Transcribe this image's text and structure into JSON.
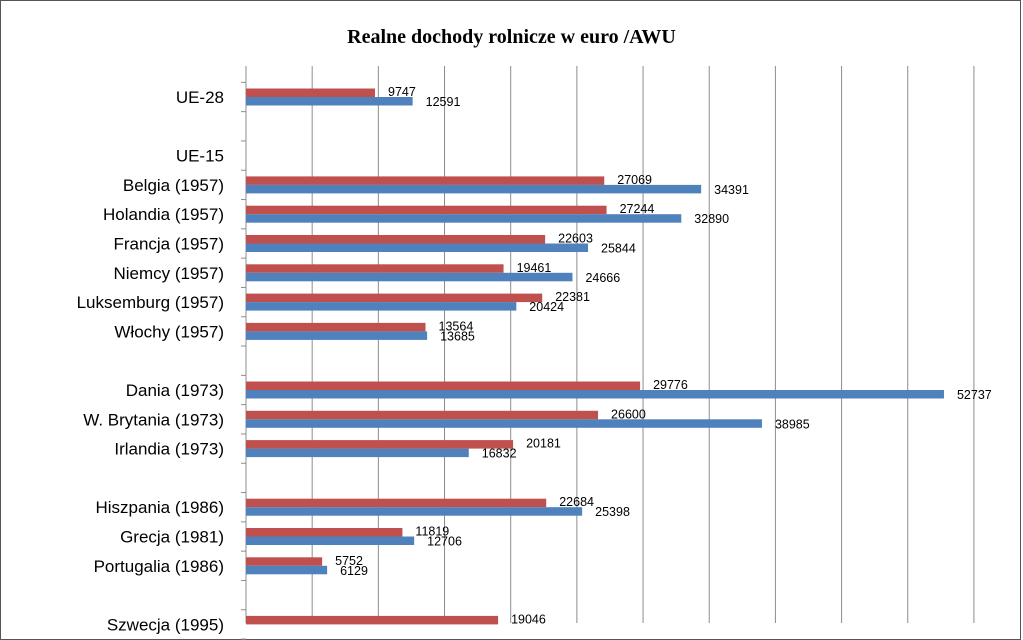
{
  "chart_data": {
    "type": "bar",
    "orientation": "horizontal",
    "title": "Realne dochody rolnicze w euro /AWU",
    "xlabel": "",
    "ylabel": "",
    "xlim": [
      0,
      55000
    ],
    "x_gridlines_every": 5000,
    "grid": true,
    "legend": "none visible",
    "colors": {
      "series_a": "#C0504D",
      "series_b": "#4F81BD"
    },
    "categories": [
      "UE-28",
      "",
      "UE-15",
      "Belgia (1957)",
      "Holandia (1957)",
      "Francja (1957)",
      "Niemcy (1957)",
      "Luksemburg  (1957)",
      "Włochy (1957)",
      "",
      "Dania (1973)",
      "W. Brytania (1973)",
      "Irlandia (1973)",
      "",
      "Hiszpania (1986)",
      "Grecja (1981)",
      "Portugalia (1986)",
      "",
      "Szwecja (1995)"
    ],
    "series": [
      {
        "values": [
          9747,
          null,
          null,
          27069,
          27244,
          22603,
          19461,
          22381,
          13564,
          null,
          29776,
          26600,
          20181,
          null,
          22684,
          11819,
          5752,
          null,
          19046
        ],
        "labels": [
          "9747",
          "",
          "",
          "27069",
          "27244",
          "22603",
          "19461",
          "22381",
          "13564",
          "",
          "29776",
          "26600",
          "20181",
          "",
          "22684",
          "11819",
          "5752",
          "",
          "19046"
        ]
      },
      {
        "values": [
          12591,
          null,
          null,
          34391,
          32890,
          25844,
          24666,
          20424,
          13685,
          null,
          52737,
          38985,
          16832,
          null,
          25398,
          12706,
          6129,
          null,
          null
        ],
        "labels": [
          "12591",
          "",
          "",
          "34391",
          "32890",
          "25844",
          "24666",
          "20424",
          "13685",
          "",
          "52737",
          "38985",
          "16832",
          "",
          "25398",
          "12706",
          "6129",
          "",
          ""
        ]
      }
    ]
  }
}
